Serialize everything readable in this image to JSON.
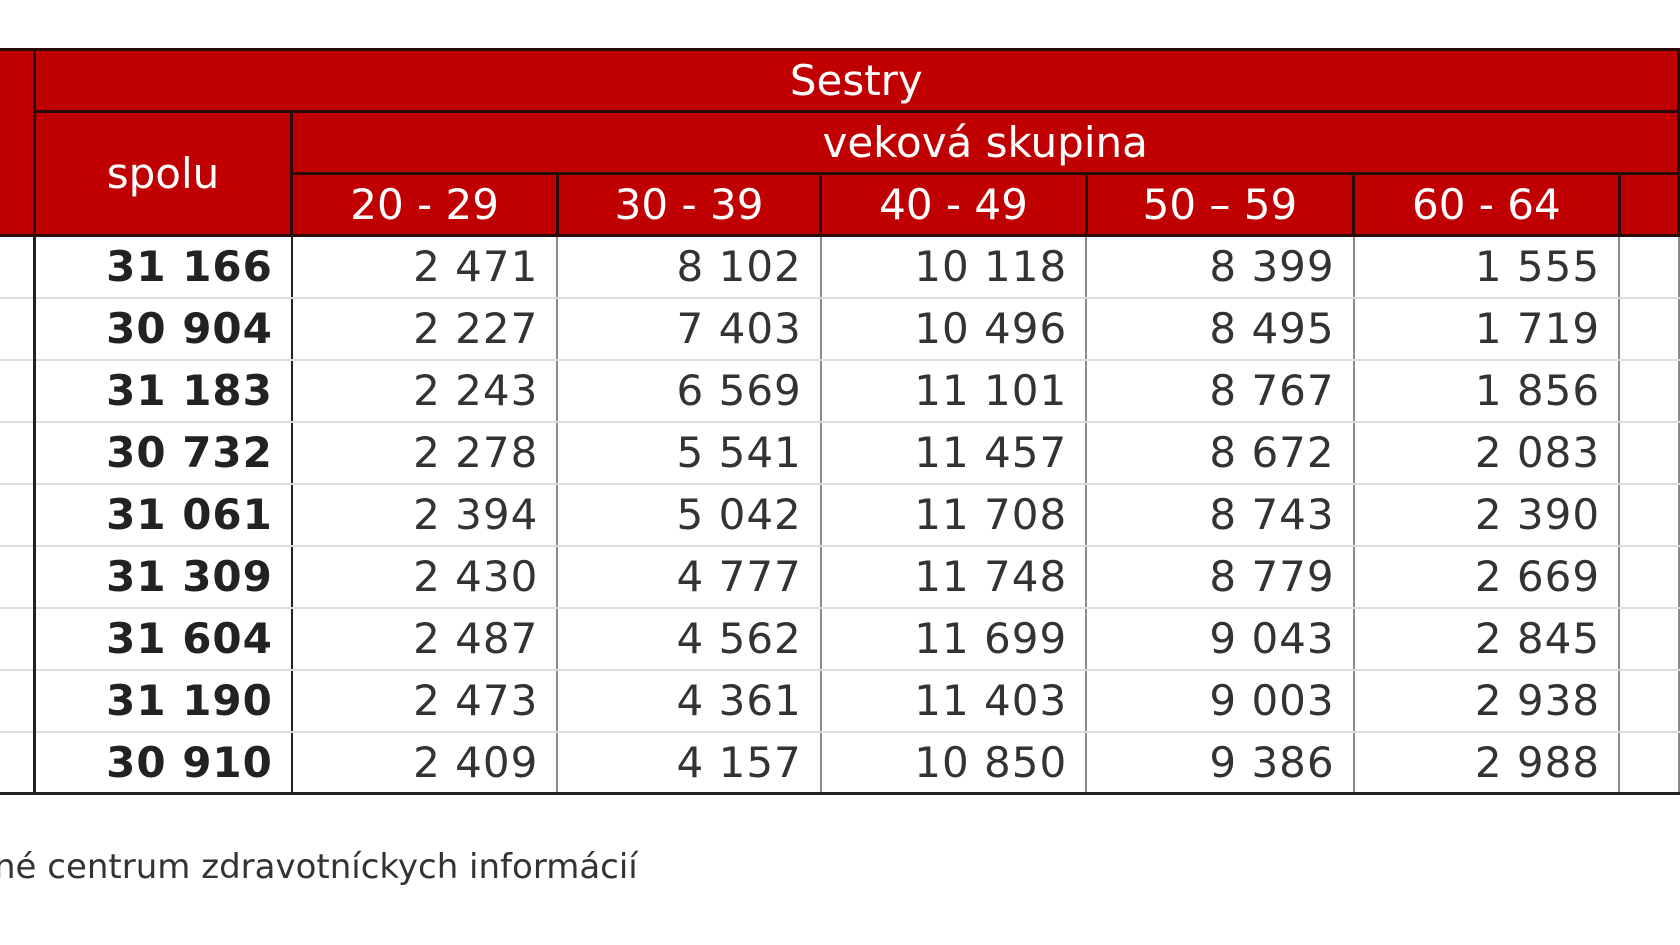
{
  "table": {
    "group_header": "Sestry",
    "total_header": "spolu",
    "age_group_header": "veková skupina",
    "age_groups": [
      "20 - 29",
      "30 - 39",
      "40 - 49",
      "50 – 59",
      "60 - 64"
    ],
    "rows": [
      {
        "total": "31 166",
        "values": [
          "2 471",
          "8 102",
          "10 118",
          "8 399",
          "1 555"
        ]
      },
      {
        "total": "30 904",
        "values": [
          "2 227",
          "7 403",
          "10 496",
          "8 495",
          "1 719"
        ]
      },
      {
        "total": "31 183",
        "values": [
          "2 243",
          "6 569",
          "11 101",
          "8 767",
          "1 856"
        ]
      },
      {
        "total": "30 732",
        "values": [
          "2 278",
          "5 541",
          "11 457",
          "8 672",
          "2 083"
        ]
      },
      {
        "total": "31 061",
        "values": [
          "2 394",
          "5 042",
          "11 708",
          "8 743",
          "2 390"
        ]
      },
      {
        "total": "31 309",
        "values": [
          "2 430",
          "4 777",
          "11 748",
          "8 779",
          "2 669"
        ]
      },
      {
        "total": "31 604",
        "values": [
          "2 487",
          "4 562",
          "11 699",
          "9 043",
          "2 845"
        ]
      },
      {
        "total": "31 190",
        "values": [
          "2 473",
          "4 361",
          "11 403",
          "9 003",
          "2 938"
        ]
      },
      {
        "total": "30 910",
        "values": [
          "2 409",
          "4 157",
          "10 850",
          "9 386",
          "2 988"
        ]
      }
    ]
  },
  "source_note": "né centrum zdravotníckych  informácií"
}
